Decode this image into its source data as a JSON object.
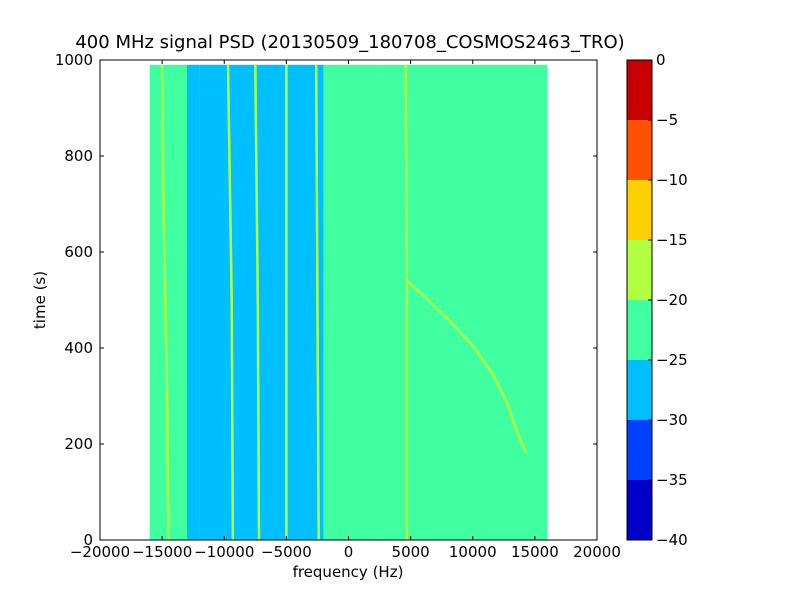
{
  "chart_data": {
    "type": "heatmap",
    "title": "400 MHz signal PSD (20130509_180708_COSMOS2463_TRO)",
    "xlabel": "frequency (Hz)",
    "ylabel": "time (s)",
    "xlim": [
      -20000,
      20000
    ],
    "ylim": [
      0,
      1000
    ],
    "x_ticks": [
      -20000,
      -15000,
      -10000,
      -5000,
      0,
      5000,
      10000,
      15000,
      20000
    ],
    "x_tick_labels": [
      "−20000",
      "−15000",
      "−10000",
      "−5000",
      "0",
      "5000",
      "10000",
      "15000",
      "20000"
    ],
    "y_ticks": [
      0,
      200,
      400,
      600,
      800,
      1000
    ],
    "y_tick_labels": [
      "0",
      "200",
      "400",
      "600",
      "800",
      "1000"
    ],
    "data_extent": {
      "freq_min_hz": -16000,
      "freq_max_hz": 16000,
      "time_min_s": 0,
      "time_max_s": 990
    },
    "background_level_db": -22.5,
    "noise_band": [
      {
        "freq_start_hz": -16000,
        "freq_end_hz": -13000,
        "level_db": -22.5
      },
      {
        "freq_start_hz": -13000,
        "freq_end_hz": -12000,
        "level_db": -25.5
      },
      {
        "freq_start_hz": -12000,
        "freq_end_hz": -2000,
        "level_db": -27.5
      },
      {
        "freq_start_hz": -2000,
        "freq_end_hz": 2500,
        "level_db": -24.5
      },
      {
        "freq_start_hz": 2500,
        "freq_end_hz": 16000,
        "level_db": -22.5
      }
    ],
    "signal_lines": [
      {
        "label": "carrier -14500 Hz",
        "level_db": -17.5,
        "points": [
          [
            -14500,
            0
          ],
          [
            -14600,
            300
          ],
          [
            -14900,
            700
          ],
          [
            -15000,
            990
          ]
        ]
      },
      {
        "label": "tone -9500 Hz",
        "level_db": -17.5,
        "points": [
          [
            -9300,
            0
          ],
          [
            -9400,
            500
          ],
          [
            -9700,
            990
          ]
        ]
      },
      {
        "label": "tone -7400 Hz",
        "level_db": -20,
        "points": [
          [
            -7200,
            0
          ],
          [
            -7300,
            500
          ],
          [
            -7500,
            990
          ]
        ]
      },
      {
        "label": "tone -5000 Hz",
        "level_db": -20,
        "points": [
          [
            -5000,
            0
          ],
          [
            -5000,
            990
          ]
        ]
      },
      {
        "label": "tone -2400 Hz",
        "level_db": -20,
        "points": [
          [
            -2400,
            0
          ],
          [
            -2600,
            990
          ]
        ]
      },
      {
        "label": "carrier 4700 Hz",
        "level_db": -17.5,
        "points": [
          [
            4700,
            0
          ],
          [
            4700,
            500
          ],
          [
            4600,
            990
          ]
        ]
      },
      {
        "label": "doppler track",
        "level_db": -17.5,
        "points": [
          [
            4700,
            540
          ],
          [
            6000,
            510
          ],
          [
            8000,
            460
          ],
          [
            10000,
            405
          ],
          [
            11500,
            350
          ],
          [
            12700,
            290
          ],
          [
            13500,
            230
          ],
          [
            14300,
            180
          ]
        ]
      }
    ],
    "colorbar": {
      "levels": [
        -40,
        -35,
        -30,
        -25,
        -20,
        -15,
        -10,
        -5,
        0
      ],
      "tick_labels": [
        "−40",
        "−35",
        "−30",
        "−25",
        "−20",
        "−15",
        "−10",
        "−5",
        "0"
      ],
      "colors": [
        "#0000c8",
        "#0040ff",
        "#00bfff",
        "#40ffa0",
        "#b0ff40",
        "#ffd000",
        "#ff5000",
        "#c80000"
      ]
    }
  }
}
